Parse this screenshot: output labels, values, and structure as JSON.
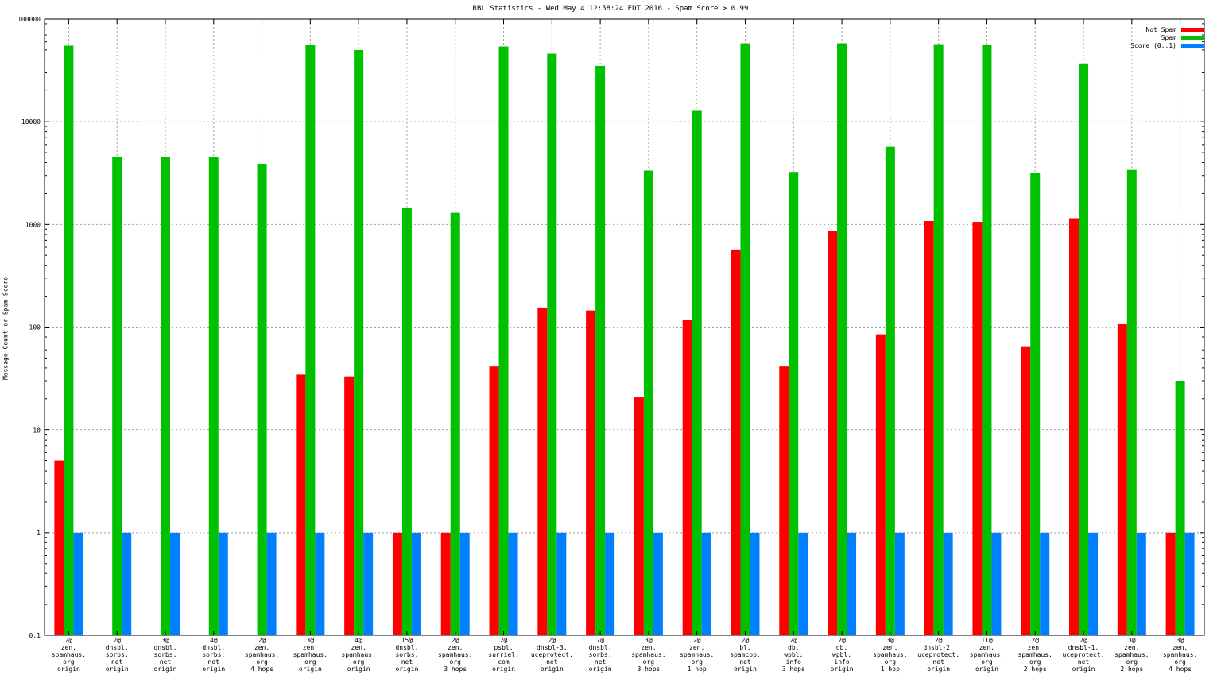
{
  "chart_data": {
    "type": "bar",
    "title": "RBL Statistics - Wed May  4 12:58:24 EDT 2016 - Spam Score > 0.99",
    "xlabel": "",
    "ylabel": "Message Count or Spam Score",
    "yscale": "log",
    "ylim": [
      0.1,
      100000
    ],
    "yticks": [
      "0.1",
      "1",
      "10",
      "100",
      "1000",
      "10000",
      "100000"
    ],
    "grid": true,
    "legend_position": "top-right",
    "categories": [
      [
        "2@",
        "zen.",
        "spamhaus.",
        "org",
        "origin"
      ],
      [
        "2@",
        "dnsbl.",
        "sorbs.",
        "net",
        "origin"
      ],
      [
        "3@",
        "dnsbl.",
        "sorbs.",
        "net",
        "origin"
      ],
      [
        "4@",
        "dnsbl.",
        "sorbs.",
        "net",
        "origin"
      ],
      [
        "2@",
        "zen.",
        "spamhaus.",
        "org",
        "4 hops"
      ],
      [
        "3@",
        "zen.",
        "spamhaus.",
        "org",
        "origin"
      ],
      [
        "4@",
        "zen.",
        "spamhaus.",
        "org",
        "origin"
      ],
      [
        "15@",
        "dnsbl.",
        "sorbs.",
        "net",
        "origin"
      ],
      [
        "2@",
        "zen.",
        "spamhaus.",
        "org",
        "3 hops"
      ],
      [
        "2@",
        "psbl.",
        "surriel.",
        "com",
        "origin"
      ],
      [
        "2@",
        "dnsbl-3.",
        "uceprotect.",
        "net",
        "origin"
      ],
      [
        "7@",
        "dnsbl.",
        "sorbs.",
        "net",
        "origin"
      ],
      [
        "3@",
        "zen.",
        "spamhaus.",
        "org",
        "3 hops"
      ],
      [
        "2@",
        "zen.",
        "spamhaus.",
        "org",
        "1 hop"
      ],
      [
        "2@",
        "bl.",
        "spamcop.",
        "net",
        "origin"
      ],
      [
        "2@",
        "db.",
        "wpbl.",
        "info",
        "3 hops"
      ],
      [
        "2@",
        "db.",
        "wpbl.",
        "info",
        "origin"
      ],
      [
        "3@",
        "zen.",
        "spamhaus.",
        "org",
        "1 hop"
      ],
      [
        "2@",
        "dnsbl-2.",
        "uceprotect.",
        "net",
        "origin"
      ],
      [
        "11@",
        "zen.",
        "spamhaus.",
        "org",
        "origin"
      ],
      [
        "2@",
        "zen.",
        "spamhaus.",
        "org",
        "2 hops"
      ],
      [
        "2@",
        "dnsbl-1.",
        "uceprotect.",
        "net",
        "origin"
      ],
      [
        "3@",
        "zen.",
        "spamhaus.",
        "org",
        "2 hops"
      ],
      [
        "3@",
        "zen.",
        "spamhaus.",
        "org",
        "4 hops"
      ]
    ],
    "series": [
      {
        "name": "Not Spam",
        "color": "#ff0000",
        "values": [
          5,
          null,
          null,
          null,
          null,
          35,
          33,
          1,
          1,
          42,
          155,
          145,
          21,
          118,
          570,
          42,
          870,
          85,
          1080,
          1060,
          65,
          1150,
          108,
          1
        ]
      },
      {
        "name": "Spam",
        "color": "#00c000",
        "values": [
          55000,
          4500,
          4500,
          4500,
          3900,
          56000,
          50000,
          1450,
          1300,
          54000,
          46000,
          35000,
          3350,
          13000,
          58000,
          3250,
          58000,
          5700,
          57000,
          56000,
          3200,
          37000,
          3400,
          30
        ]
      },
      {
        "name": "Score (0..1)",
        "color": "#0080ff",
        "values": [
          1,
          1,
          1,
          1,
          1,
          1,
          1,
          1,
          1,
          1,
          1,
          1,
          1,
          1,
          1,
          1,
          1,
          1,
          1,
          1,
          1,
          1,
          1,
          1
        ]
      }
    ]
  }
}
